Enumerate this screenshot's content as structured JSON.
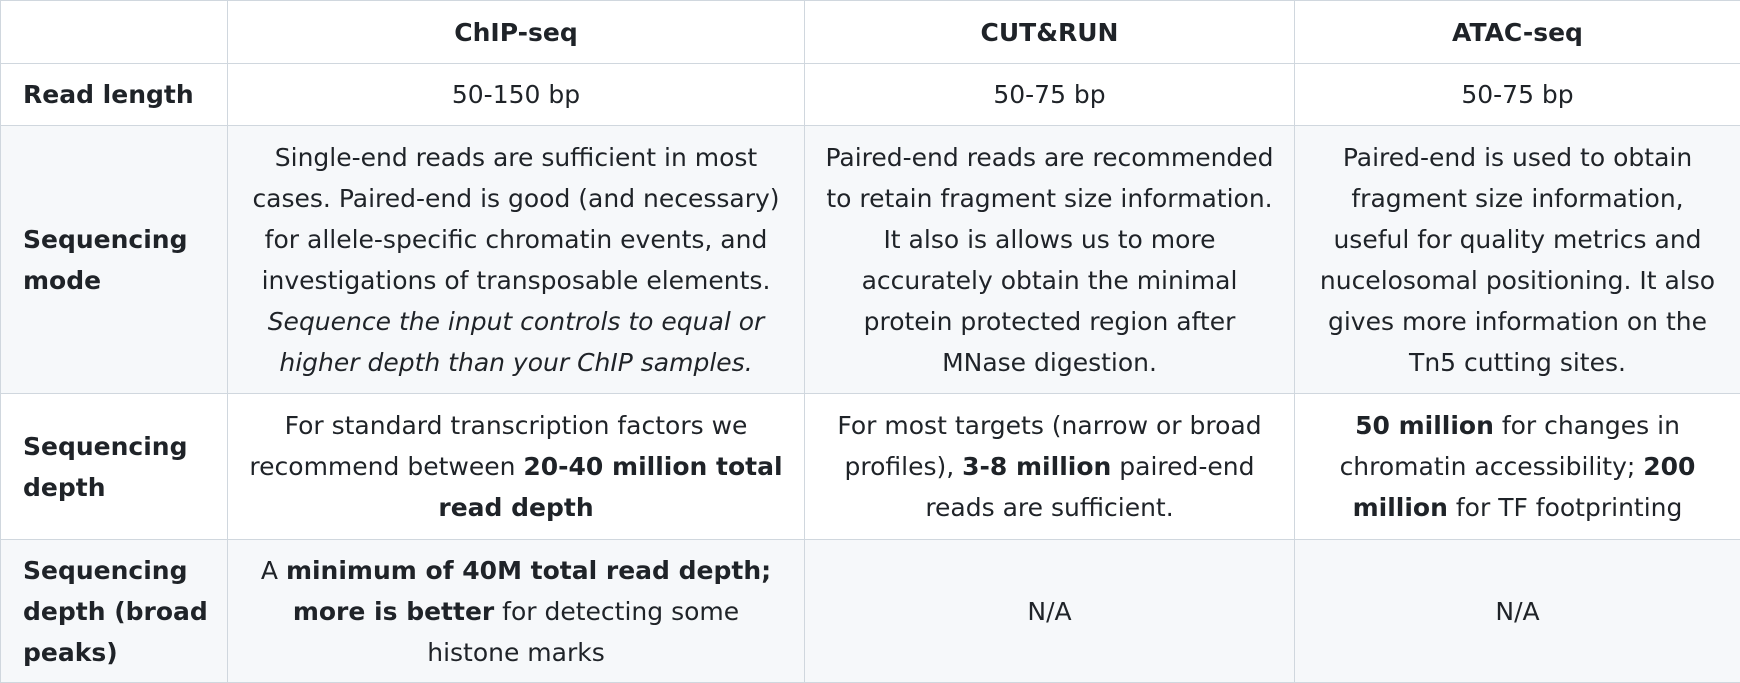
{
  "table": {
    "columns": [
      "",
      "ChIP-seq",
      "CUT&RUN",
      "ATAC-seq"
    ],
    "rows": {
      "read_length": {
        "label": "Read length",
        "chip": "50-150 bp",
        "cutrun": "50-75 bp",
        "atac": "50-75 bp"
      },
      "mode": {
        "label": "Sequencing mode",
        "chip": "Single-end reads are sufficient in most cases. Paired-end is good (and necessary) for allele-specific chromatin events, and investigations of transposable elements.",
        "chip_italic": "Sequence the input controls to equal or higher depth than your ChIP samples.",
        "cutrun": "Paired-end reads are recommended to retain fragment size information. It also is allows us to more accurately obtain the minimal protein protected region after MNase digestion.",
        "atac": "Paired-end is used to obtain fragment size information, useful for quality metrics and nucelosomal positioning. It also gives more information on the Tn5 cutting sites."
      },
      "depth": {
        "label": "Sequencing depth",
        "chip_pre": "For standard transcription factors we recommend between ",
        "chip_bold": "20-40 million total read depth",
        "cutrun_pre": "For most targets (narrow or broad profiles), ",
        "cutrun_bold": "3-8 million",
        "cutrun_post": " paired-end reads are sufficient.",
        "atac_bold1": "50 million",
        "atac_mid": " for changes in chromatin accessibility; ",
        "atac_bold2": "200 million",
        "atac_post": " for TF footprinting"
      },
      "broad": {
        "label": "Sequencing depth (broad peaks)",
        "chip_pre": "A ",
        "chip_bold": "minimum of 40M total read depth; more is better",
        "chip_post": " for detecting some histone marks",
        "cutrun": "N/A",
        "atac": "N/A"
      }
    }
  }
}
